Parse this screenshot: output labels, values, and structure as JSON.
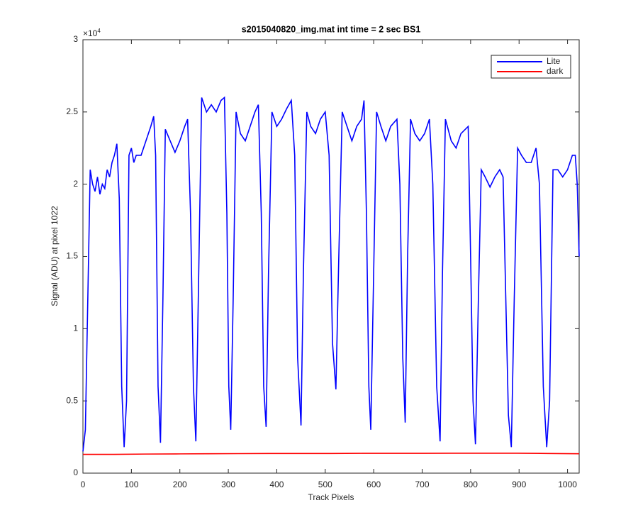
{
  "chart_data": {
    "type": "line",
    "title": "s2015040820_img.mat int time = 2 sec   BS1",
    "x_label": "Track Pixels",
    "y_label": "Signal (ADU) at pixel 1022",
    "y_multiplier_base": "×10",
    "y_multiplier_exponent": "4",
    "xlim": [
      0,
      1024
    ],
    "xticks": [
      0,
      100,
      200,
      300,
      400,
      500,
      600,
      700,
      800,
      900,
      1000
    ],
    "ylim": [
      0,
      3
    ],
    "yticks": [
      0,
      0.5,
      1,
      1.5,
      2,
      2.5,
      3
    ],
    "legend": "upper right",
    "series": [
      {
        "name": "Lite",
        "color": "#0000ff",
        "x": [
          0,
          5,
          10,
          15,
          20,
          25,
          30,
          35,
          40,
          45,
          50,
          55,
          60,
          65,
          70,
          75,
          80,
          85,
          90,
          95,
          100,
          105,
          110,
          120,
          130,
          140,
          146,
          150,
          155,
          160,
          165,
          170,
          180,
          190,
          200,
          210,
          216,
          222,
          228,
          233,
          238,
          245,
          255,
          265,
          275,
          285,
          292,
          297,
          301,
          305,
          310,
          316,
          325,
          335,
          345,
          355,
          362,
          368,
          373,
          378,
          383,
          390,
          400,
          410,
          420,
          430,
          437,
          443,
          450,
          455,
          462,
          470,
          480,
          490,
          500,
          508,
          515,
          522,
          528,
          535,
          545,
          555,
          565,
          575,
          580,
          585,
          590,
          594,
          600,
          606,
          615,
          625,
          635,
          648,
          654,
          660,
          665,
          670,
          676,
          685,
          695,
          705,
          715,
          722,
          730,
          737,
          742,
          748,
          760,
          770,
          780,
          795,
          800,
          805,
          810,
          816,
          822,
          830,
          840,
          850,
          860,
          867,
          872,
          878,
          884,
          890,
          897,
          905,
          915,
          925,
          935,
          942,
          950,
          957,
          963,
          970,
          980,
          990,
          1000,
          1010,
          1016,
          1020,
          1024
        ],
        "values": [
          0.15,
          0.3,
          1.2,
          2.1,
          2.0,
          1.95,
          2.05,
          1.93,
          2.0,
          1.97,
          2.1,
          2.05,
          2.15,
          2.2,
          2.28,
          1.9,
          0.6,
          0.18,
          0.5,
          2.2,
          2.25,
          2.15,
          2.2,
          2.2,
          2.3,
          2.4,
          2.47,
          2.2,
          0.6,
          0.21,
          1.2,
          2.38,
          2.3,
          2.22,
          2.3,
          2.4,
          2.45,
          1.8,
          0.6,
          0.22,
          1.2,
          2.6,
          2.5,
          2.55,
          2.5,
          2.58,
          2.6,
          1.8,
          0.6,
          0.3,
          1.2,
          2.5,
          2.35,
          2.3,
          2.4,
          2.5,
          2.55,
          1.8,
          0.6,
          0.32,
          1.4,
          2.5,
          2.4,
          2.45,
          2.52,
          2.58,
          2.2,
          0.8,
          0.33,
          1.4,
          2.5,
          2.4,
          2.35,
          2.45,
          2.5,
          2.2,
          0.9,
          0.58,
          1.5,
          2.5,
          2.4,
          2.3,
          2.4,
          2.45,
          2.58,
          1.8,
          0.6,
          0.3,
          1.4,
          2.5,
          2.4,
          2.3,
          2.4,
          2.45,
          2.0,
          0.8,
          0.35,
          1.5,
          2.45,
          2.35,
          2.3,
          2.35,
          2.45,
          2.0,
          0.6,
          0.22,
          1.4,
          2.45,
          2.3,
          2.25,
          2.35,
          2.4,
          1.5,
          0.5,
          0.2,
          1.2,
          2.1,
          2.05,
          1.98,
          2.05,
          2.1,
          2.05,
          1.3,
          0.4,
          0.18,
          1.2,
          2.25,
          2.2,
          2.15,
          2.15,
          2.25,
          2.0,
          0.6,
          0.18,
          0.5,
          2.1,
          2.1,
          2.05,
          2.1,
          2.2,
          2.2,
          2.0,
          1.5
        ]
      },
      {
        "name": "dark",
        "color": "#ff0000",
        "x": [
          0,
          64,
          128,
          192,
          256,
          320,
          384,
          448,
          512,
          576,
          640,
          704,
          768,
          832,
          896,
          960,
          1024
        ],
        "values": [
          0.13,
          0.13,
          0.132,
          0.133,
          0.134,
          0.135,
          0.136,
          0.136,
          0.136,
          0.137,
          0.137,
          0.137,
          0.138,
          0.138,
          0.138,
          0.136,
          0.134
        ]
      }
    ]
  }
}
